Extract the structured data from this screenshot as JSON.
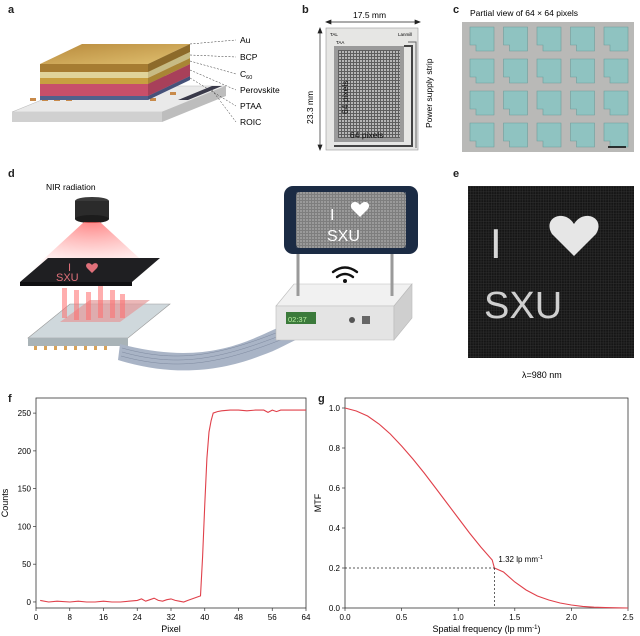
{
  "panels": {
    "a": {
      "label": "a",
      "layers": [
        "Au",
        "BCP",
        "C",
        "60",
        "Perovskite",
        "PTAA",
        "ROIC"
      ]
    },
    "b": {
      "label": "b",
      "width_text": "17.5 mm",
      "height_text": "23.3 mm",
      "pixels_v": "64 pixels",
      "pixels_h": "64 pixels",
      "strip_text": "Power supply strip",
      "chip_marks": [
        "TAL",
        "Lanmill",
        "TAA"
      ]
    },
    "c": {
      "label": "c",
      "title": "Partial view of 64 × 64 pixels"
    },
    "d": {
      "label": "d",
      "nir_text": "NIR radiation",
      "phone_i": "I",
      "phone_sxu": "SXU",
      "slab_i": "I",
      "slab_sxu": "SXU",
      "display": "02:37"
    },
    "e": {
      "label": "e",
      "img_i": "I",
      "img_sxu": "SXU",
      "caption": "λ=980 nm"
    },
    "f": {
      "label": "f"
    },
    "g": {
      "label": "g"
    }
  },
  "colors": {
    "curve": "#e0404a",
    "au": "#c9a24a",
    "bcp": "#f1e6b0",
    "c60": "#d9b24f",
    "perovskite": "#d8607a",
    "ptaa": "#6f7fb0",
    "roic": "#8a8a8a",
    "pixel": "#8fc3c1"
  },
  "chart_data": [
    {
      "type": "line",
      "panel": "f",
      "xlabel": "Pixel",
      "ylabel": "Counts",
      "xlim": [
        0,
        64
      ],
      "ylim": [
        -8,
        270
      ],
      "xticks": [
        0,
        8,
        16,
        24,
        32,
        40,
        48,
        56,
        64
      ],
      "yticks": [
        0,
        50,
        100,
        150,
        200,
        250
      ],
      "x": [
        1,
        3,
        5,
        8,
        10,
        12,
        14,
        16,
        18,
        20,
        22,
        24,
        25,
        26,
        27,
        28,
        29,
        30,
        31,
        32,
        33,
        34,
        35,
        36,
        37,
        38,
        39,
        39.5,
        40,
        40.5,
        41,
        41.5,
        42,
        43,
        44,
        46,
        48,
        50,
        52,
        54,
        55,
        56,
        57,
        58,
        60,
        62,
        64
      ],
      "y": [
        2,
        0,
        1,
        0,
        1,
        0,
        0,
        1,
        0,
        0,
        1,
        2,
        4,
        1,
        3,
        5,
        2,
        1,
        3,
        4,
        2,
        1,
        0,
        2,
        4,
        6,
        8,
        60,
        130,
        190,
        225,
        240,
        250,
        252,
        253,
        254,
        254,
        253,
        254,
        254,
        251,
        254,
        252,
        254,
        254,
        254,
        254
      ]
    },
    {
      "type": "line",
      "panel": "g",
      "xlabel": "Spatial frequency (lp mm",
      "xlabel_sup": "-1",
      "xlabel_tail": ")",
      "ylabel": "MTF",
      "xlim": [
        0,
        2.5
      ],
      "ylim": [
        0,
        1.05
      ],
      "xticks": [
        0.0,
        0.5,
        1.0,
        1.5,
        2.0,
        2.5
      ],
      "xtick_labels": [
        "0.0",
        "0.5",
        "1.0",
        "1.5",
        "2.0",
        "2.5"
      ],
      "yticks": [
        0.0,
        0.2,
        0.4,
        0.6,
        0.8,
        1.0
      ],
      "ytick_labels": [
        "0.0",
        "0.2",
        "0.4",
        "0.6",
        "0.8",
        "1.0"
      ],
      "x": [
        0.0,
        0.1,
        0.2,
        0.3,
        0.4,
        0.5,
        0.6,
        0.7,
        0.8,
        0.9,
        1.0,
        1.1,
        1.2,
        1.3,
        1.32,
        1.4,
        1.5,
        1.6,
        1.7,
        1.8,
        1.9,
        2.0,
        2.1,
        2.2,
        2.3,
        2.4,
        2.5
      ],
      "y": [
        1.0,
        0.985,
        0.96,
        0.92,
        0.87,
        0.81,
        0.745,
        0.675,
        0.6,
        0.525,
        0.45,
        0.375,
        0.305,
        0.24,
        0.2,
        0.18,
        0.13,
        0.09,
        0.06,
        0.04,
        0.025,
        0.015,
        0.008,
        0.004,
        0.002,
        0.001,
        0.0
      ],
      "annotation": {
        "x": 1.32,
        "y": 0.2,
        "text": "1.32 lp mm",
        "sup": "-1"
      }
    }
  ]
}
